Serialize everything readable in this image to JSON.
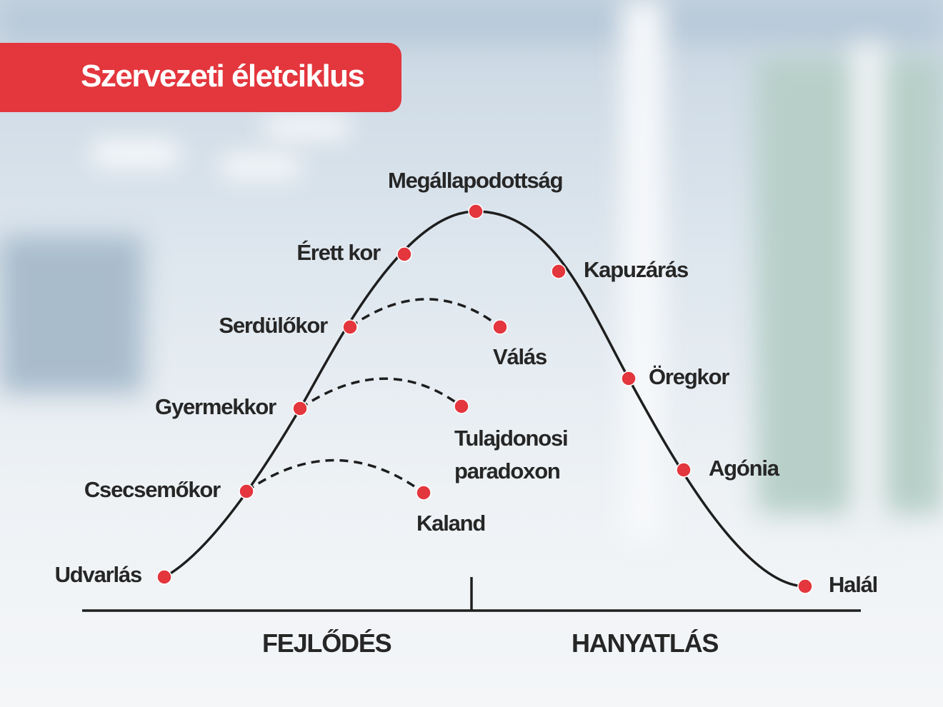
{
  "title": "Szervezeti életciklus",
  "nodes": [
    {
      "label": "Udvarlás"
    },
    {
      "label": "Csecsemőkor"
    },
    {
      "label": "Gyermekkor"
    },
    {
      "label": "Serdülőkor"
    },
    {
      "label": "Érett kor"
    },
    {
      "label": "Megállapodottság"
    },
    {
      "label": "Kapuzárás"
    },
    {
      "label": "Öregkor"
    },
    {
      "label": "Agónia"
    },
    {
      "label": "Halál"
    }
  ],
  "branches": [
    {
      "label": "Kaland"
    },
    {
      "label": "Tulajdonosi paradoxon"
    },
    {
      "label": "Válás"
    }
  ],
  "phases": [
    "FEJLŐDÉS",
    "HANYATLÁS"
  ]
}
